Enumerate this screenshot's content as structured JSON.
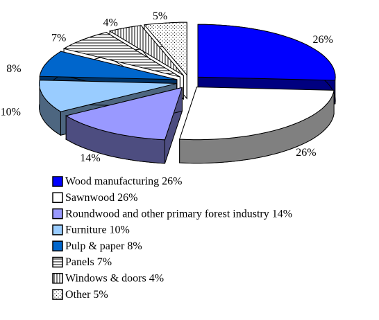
{
  "chart_data": {
    "type": "pie3d",
    "categories": [
      "Wood manufacturing 26%",
      "Sawnwood 26%",
      "Roundwood and other primary forest industry 14%",
      "Furniture 10%",
      "Pulp & paper 8%",
      "Panels 7%",
      "Windows & doors 4%",
      "Other 5%"
    ],
    "values": [
      26,
      26,
      14,
      10,
      8,
      7,
      4,
      5
    ],
    "value_labels": [
      "26%",
      "26%",
      "14%",
      "10%",
      "8%",
      "7%",
      "4%",
      "5%"
    ],
    "colors": [
      "#0000ff",
      "#ffffff",
      "#9999ff",
      "#99ccff",
      "#0066cc",
      "hstripe",
      "vstripe",
      "dots"
    ],
    "legend": "bottom"
  }
}
